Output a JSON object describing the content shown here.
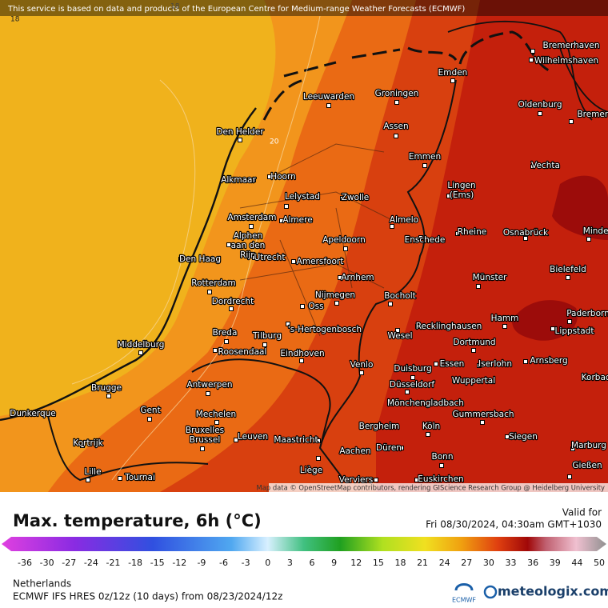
{
  "header": {
    "attribution": "This service is based on data and products of the European Centre for Medium-range Weather Forecasts (ECMWF)"
  },
  "map": {
    "contour_labels": [
      "18",
      "18",
      "20"
    ],
    "credit": "Map data © OpenStreetMap contributors, rendering GIScience Research Group @ Heidelberg University",
    "cities": [
      {
        "name": "Bremerhaven"
      },
      {
        "name": "Wilhelmshaven"
      },
      {
        "name": "Emden"
      },
      {
        "name": "Leeuwarden"
      },
      {
        "name": "Groningen"
      },
      {
        "name": "Oldenburg"
      },
      {
        "name": "Bremen"
      },
      {
        "name": "Den Helder"
      },
      {
        "name": "Assen"
      },
      {
        "name": "Emmen"
      },
      {
        "name": "Vechta"
      },
      {
        "name": "Alkmaar"
      },
      {
        "name": "Hoorn"
      },
      {
        "lines": [
          "Lingen",
          "(Ems)"
        ]
      },
      {
        "name": "Lelystad"
      },
      {
        "name": "Zwolle"
      },
      {
        "name": "Amsterdam"
      },
      {
        "name": "Almere"
      },
      {
        "name": "Almelo"
      },
      {
        "name": "Rheine"
      },
      {
        "name": "Osnabrück"
      },
      {
        "name": "Minden"
      },
      {
        "lines": [
          "Alphen",
          "aan den",
          "Rijn"
        ]
      },
      {
        "name": "Apeldoorn"
      },
      {
        "name": "Enschede"
      },
      {
        "name": "Den Haag"
      },
      {
        "name": "Utrecht"
      },
      {
        "name": "Amersfoort"
      },
      {
        "name": "Bielefeld"
      },
      {
        "name": "Arnhem"
      },
      {
        "name": "Münster"
      },
      {
        "name": "Rotterdam"
      },
      {
        "name": "Nijmegen"
      },
      {
        "name": "Bocholt"
      },
      {
        "name": "Dordrecht"
      },
      {
        "name": "Oss"
      },
      {
        "name": "Paderborn"
      },
      {
        "name": "Hamm"
      },
      {
        "name": "Lippstadt"
      },
      {
        "name": "Recklinghausen"
      },
      {
        "name": "'s-Hertogenbosch"
      },
      {
        "name": "Breda"
      },
      {
        "name": "Tilburg"
      },
      {
        "name": "Wesel"
      },
      {
        "name": "Middelburg"
      },
      {
        "name": "Dortmund"
      },
      {
        "name": "Roosendaal"
      },
      {
        "name": "Eindhoven"
      },
      {
        "name": "Arnsberg"
      },
      {
        "name": "Venlo"
      },
      {
        "name": "Essen"
      },
      {
        "name": "Iserlohn"
      },
      {
        "name": "Duisburg"
      },
      {
        "name": "Korbach"
      },
      {
        "name": "Wuppertal"
      },
      {
        "name": "Düsseldorf"
      },
      {
        "name": "Antwerpen"
      },
      {
        "name": "Brugge"
      },
      {
        "name": "Mönchengladbach"
      },
      {
        "name": "Gent"
      },
      {
        "name": "Gummersbach"
      },
      {
        "name": "Mechelen"
      },
      {
        "name": "Dunkerque"
      },
      {
        "name": "Bergheim"
      },
      {
        "name": "Köln"
      },
      {
        "lines": [
          "Bruxelles",
          "Brussel"
        ]
      },
      {
        "name": "Leuven"
      },
      {
        "name": "Siegen"
      },
      {
        "name": "Maastricht"
      },
      {
        "name": "Kortrijk"
      },
      {
        "name": "Düren"
      },
      {
        "name": "Marburg"
      },
      {
        "name": "Aachen"
      },
      {
        "name": "Bonn"
      },
      {
        "name": "Gießen"
      },
      {
        "name": "Liège"
      },
      {
        "name": "Lille"
      },
      {
        "name": "Tournai"
      },
      {
        "name": "Verviers"
      },
      {
        "name": "Euskirchen"
      }
    ]
  },
  "legend": {
    "title": "Max. temperature, 6h (°C)",
    "valid_label": "Valid for",
    "valid_time": "Fri 08/30/2024, 04:30am GMT+1030",
    "ticks": [
      -36,
      -30,
      -27,
      -24,
      -21,
      -18,
      -15,
      -12,
      -9,
      -6,
      -3,
      0,
      3,
      6,
      9,
      12,
      15,
      18,
      21,
      24,
      27,
      30,
      33,
      36,
      39,
      44,
      50
    ]
  },
  "footer": {
    "region": "Netherlands",
    "model": "ECMWF IFS HRES 0z/12z (10 days) from 08/23/2024/12z",
    "logo": "ECMWF",
    "brand": "meteologix.com"
  }
}
